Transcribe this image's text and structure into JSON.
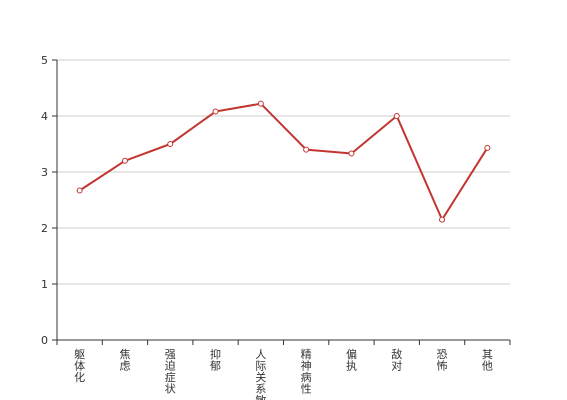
{
  "chart_data": {
    "type": "line",
    "categories": [
      "躯体化",
      "焦虑",
      "强迫症状",
      "抑郁",
      "人际关系敏感",
      "精神病性",
      "偏执",
      "敌对",
      "恐怖",
      "其他"
    ],
    "values": [
      2.67,
      3.2,
      3.5,
      4.08,
      4.22,
      3.4,
      3.33,
      4.0,
      2.15,
      3.43
    ],
    "ylim": [
      0,
      5
    ],
    "yticks": [
      0,
      1,
      2,
      3,
      4,
      5
    ],
    "grid": true,
    "line_color": "#c23531",
    "grid_color": "#cccccc",
    "axis_color": "#333333"
  }
}
